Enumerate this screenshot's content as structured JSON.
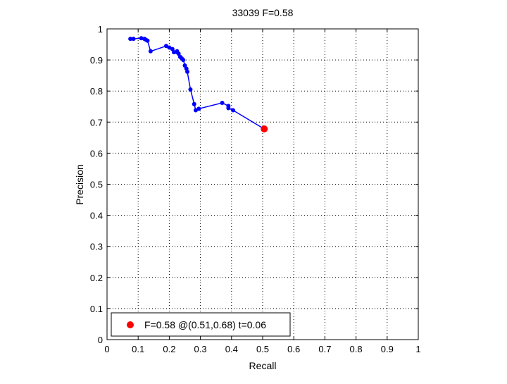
{
  "chart_data": {
    "type": "line",
    "title": "33039 F=0.58",
    "xlabel": "Recall",
    "ylabel": "Precision",
    "xlim": [
      0,
      1
    ],
    "ylim": [
      0,
      1
    ],
    "xticks": [
      0,
      0.1,
      0.2,
      0.3,
      0.4,
      0.5,
      0.6,
      0.7,
      0.8,
      0.9,
      1
    ],
    "yticks": [
      0,
      0.1,
      0.2,
      0.3,
      0.4,
      0.5,
      0.6,
      0.7,
      0.8,
      0.9,
      1
    ],
    "xtick_labels": [
      "0",
      "0.1",
      "0.2",
      "0.3",
      "0.4",
      "0.5",
      "0.6",
      "0.7",
      "0.8",
      "0.9",
      "1"
    ],
    "ytick_labels": [
      "0",
      "0.1",
      "0.2",
      "0.3",
      "0.4",
      "0.5",
      "0.6",
      "0.7",
      "0.8",
      "0.9",
      "1"
    ],
    "grid": true,
    "grid_style": "dotted",
    "series": [
      {
        "color": "#0000ff",
        "marker": "dot",
        "x": [
          0.505,
          0.405,
          0.39,
          0.39,
          0.37,
          0.295,
          0.285,
          0.28,
          0.268,
          0.258,
          0.255,
          0.25,
          0.245,
          0.24,
          0.235,
          0.23,
          0.225,
          0.225,
          0.215,
          0.21,
          0.2,
          0.19,
          0.14,
          0.13,
          0.125,
          0.12,
          0.11,
          0.085,
          0.075
        ],
        "y": [
          0.678,
          0.738,
          0.745,
          0.752,
          0.762,
          0.743,
          0.738,
          0.758,
          0.805,
          0.862,
          0.872,
          0.882,
          0.9,
          0.905,
          0.91,
          0.92,
          0.925,
          0.928,
          0.925,
          0.935,
          0.94,
          0.945,
          0.928,
          0.962,
          0.965,
          0.968,
          0.97,
          0.968,
          0.968
        ]
      }
    ],
    "best_point": {
      "x": 0.505,
      "y": 0.678,
      "color": "#ff0000"
    },
    "legend": {
      "position": "bottom-left",
      "text": "F=0.58 @(0.51,0.68) t=0.06"
    }
  }
}
